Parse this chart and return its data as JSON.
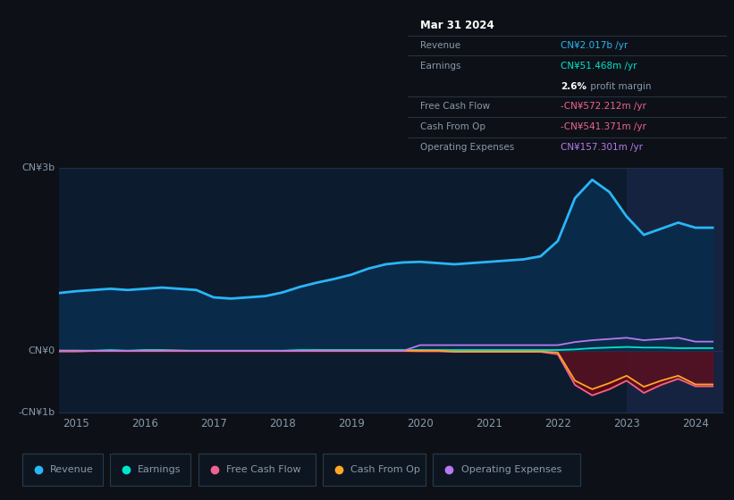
{
  "bg_color": "#0d1117",
  "plot_bg_color": "#0d1b2e",
  "highlight_bg_color": "#162340",
  "grid_color": "#1e3050",
  "text_color": "#8899aa",
  "title_color": "#ffffff",
  "years": [
    2014.75,
    2015.0,
    2015.25,
    2015.5,
    2015.75,
    2016.0,
    2016.25,
    2016.5,
    2016.75,
    2017.0,
    2017.25,
    2017.5,
    2017.75,
    2018.0,
    2018.25,
    2018.5,
    2018.75,
    2019.0,
    2019.25,
    2019.5,
    2019.75,
    2020.0,
    2020.25,
    2020.5,
    2020.75,
    2021.0,
    2021.25,
    2021.5,
    2021.75,
    2022.0,
    2022.25,
    2022.5,
    2022.75,
    2023.0,
    2023.25,
    2023.5,
    2023.75,
    2024.0,
    2024.25
  ],
  "revenue": [
    0.95,
    0.98,
    1.0,
    1.02,
    1.0,
    1.02,
    1.04,
    1.02,
    1.0,
    0.88,
    0.86,
    0.88,
    0.9,
    0.96,
    1.05,
    1.12,
    1.18,
    1.25,
    1.35,
    1.42,
    1.45,
    1.46,
    1.44,
    1.42,
    1.44,
    1.46,
    1.48,
    1.5,
    1.55,
    1.8,
    2.5,
    2.8,
    2.6,
    2.2,
    1.9,
    2.0,
    2.1,
    2.017,
    2.017
  ],
  "earnings": [
    0.01,
    0.01,
    0.01,
    0.02,
    0.01,
    0.02,
    0.02,
    0.01,
    0.01,
    0.01,
    0.01,
    0.01,
    0.01,
    0.01,
    0.02,
    0.02,
    0.02,
    0.02,
    0.02,
    0.02,
    0.02,
    0.02,
    0.02,
    0.02,
    0.02,
    0.02,
    0.02,
    0.02,
    0.02,
    0.02,
    0.03,
    0.05,
    0.06,
    0.07,
    0.06,
    0.06,
    0.05,
    0.051,
    0.051
  ],
  "free_cash_flow": [
    0.01,
    0.01,
    0.005,
    0.005,
    0.005,
    0.005,
    0.01,
    0.01,
    0.005,
    0.005,
    0.005,
    0.005,
    0.005,
    0.005,
    0.005,
    0.005,
    0.005,
    0.005,
    0.005,
    0.005,
    0.005,
    0.0,
    0.0,
    -0.01,
    -0.01,
    -0.01,
    -0.01,
    -0.01,
    -0.01,
    -0.05,
    -0.55,
    -0.72,
    -0.62,
    -0.48,
    -0.68,
    -0.55,
    -0.45,
    -0.572,
    -0.572
  ],
  "cash_from_op": [
    0.0,
    0.0,
    0.005,
    0.005,
    0.005,
    0.01,
    0.01,
    0.01,
    0.005,
    0.005,
    0.005,
    0.005,
    0.005,
    0.005,
    0.005,
    0.01,
    0.01,
    0.01,
    0.01,
    0.01,
    0.01,
    0.01,
    0.01,
    -0.005,
    -0.005,
    -0.005,
    -0.005,
    -0.005,
    -0.005,
    -0.02,
    -0.48,
    -0.62,
    -0.52,
    -0.4,
    -0.58,
    -0.48,
    -0.4,
    -0.541,
    -0.541
  ],
  "op_expenses": [
    0.0,
    0.0,
    0.005,
    0.005,
    0.005,
    0.005,
    0.005,
    0.005,
    0.005,
    0.005,
    0.005,
    0.005,
    0.005,
    0.005,
    0.005,
    0.005,
    0.005,
    0.005,
    0.005,
    0.005,
    0.005,
    0.1,
    0.1,
    0.1,
    0.1,
    0.1,
    0.1,
    0.1,
    0.1,
    0.1,
    0.15,
    0.18,
    0.2,
    0.22,
    0.18,
    0.2,
    0.22,
    0.157,
    0.157
  ],
  "revenue_color": "#29b6f6",
  "earnings_color": "#00e5cc",
  "fcf_color": "#f06292",
  "cashop_color": "#ffa726",
  "opex_color": "#b57bee",
  "fill_revenue_color": "#0a2a4a",
  "fill_neg_color": "#5a1020",
  "ylim": [
    -1.0,
    3.0
  ],
  "xlim": [
    2014.75,
    2024.4
  ],
  "yticks": [
    -1.0,
    0.0,
    3.0
  ],
  "ytick_labels": [
    "-CN¥1b",
    "CN¥0",
    "CN¥3b"
  ],
  "xticks": [
    2015,
    2016,
    2017,
    2018,
    2019,
    2020,
    2021,
    2022,
    2023,
    2024
  ],
  "xtick_labels": [
    "2015",
    "2016",
    "2017",
    "2018",
    "2019",
    "2020",
    "2021",
    "2022",
    "2023",
    "2024"
  ],
  "highlight_x_start": 2023.0,
  "highlight_x_end": 2024.4,
  "tooltip_title": "Mar 31 2024",
  "tooltip_rows": [
    {
      "label": "Revenue",
      "value": "CN¥2.017b /yr",
      "value_color": "#29b6f6"
    },
    {
      "label": "Earnings",
      "value": "CN¥51.468m /yr",
      "value_color": "#00e5cc"
    },
    {
      "label": "",
      "value": "2.6% profit margin",
      "value_color": "#ffffff",
      "bold_part": "2.6%"
    },
    {
      "label": "Free Cash Flow",
      "value": "-CN¥572.212m /yr",
      "value_color": "#f06292"
    },
    {
      "label": "Cash From Op",
      "value": "-CN¥541.371m /yr",
      "value_color": "#f06292"
    },
    {
      "label": "Operating Expenses",
      "value": "CN¥157.301m /yr",
      "value_color": "#b57bee"
    }
  ],
  "legend_items": [
    {
      "label": "Revenue",
      "color": "#29b6f6"
    },
    {
      "label": "Earnings",
      "color": "#00e5cc"
    },
    {
      "label": "Free Cash Flow",
      "color": "#f06292"
    },
    {
      "label": "Cash From Op",
      "color": "#ffa726"
    },
    {
      "label": "Operating Expenses",
      "color": "#b57bee"
    }
  ]
}
